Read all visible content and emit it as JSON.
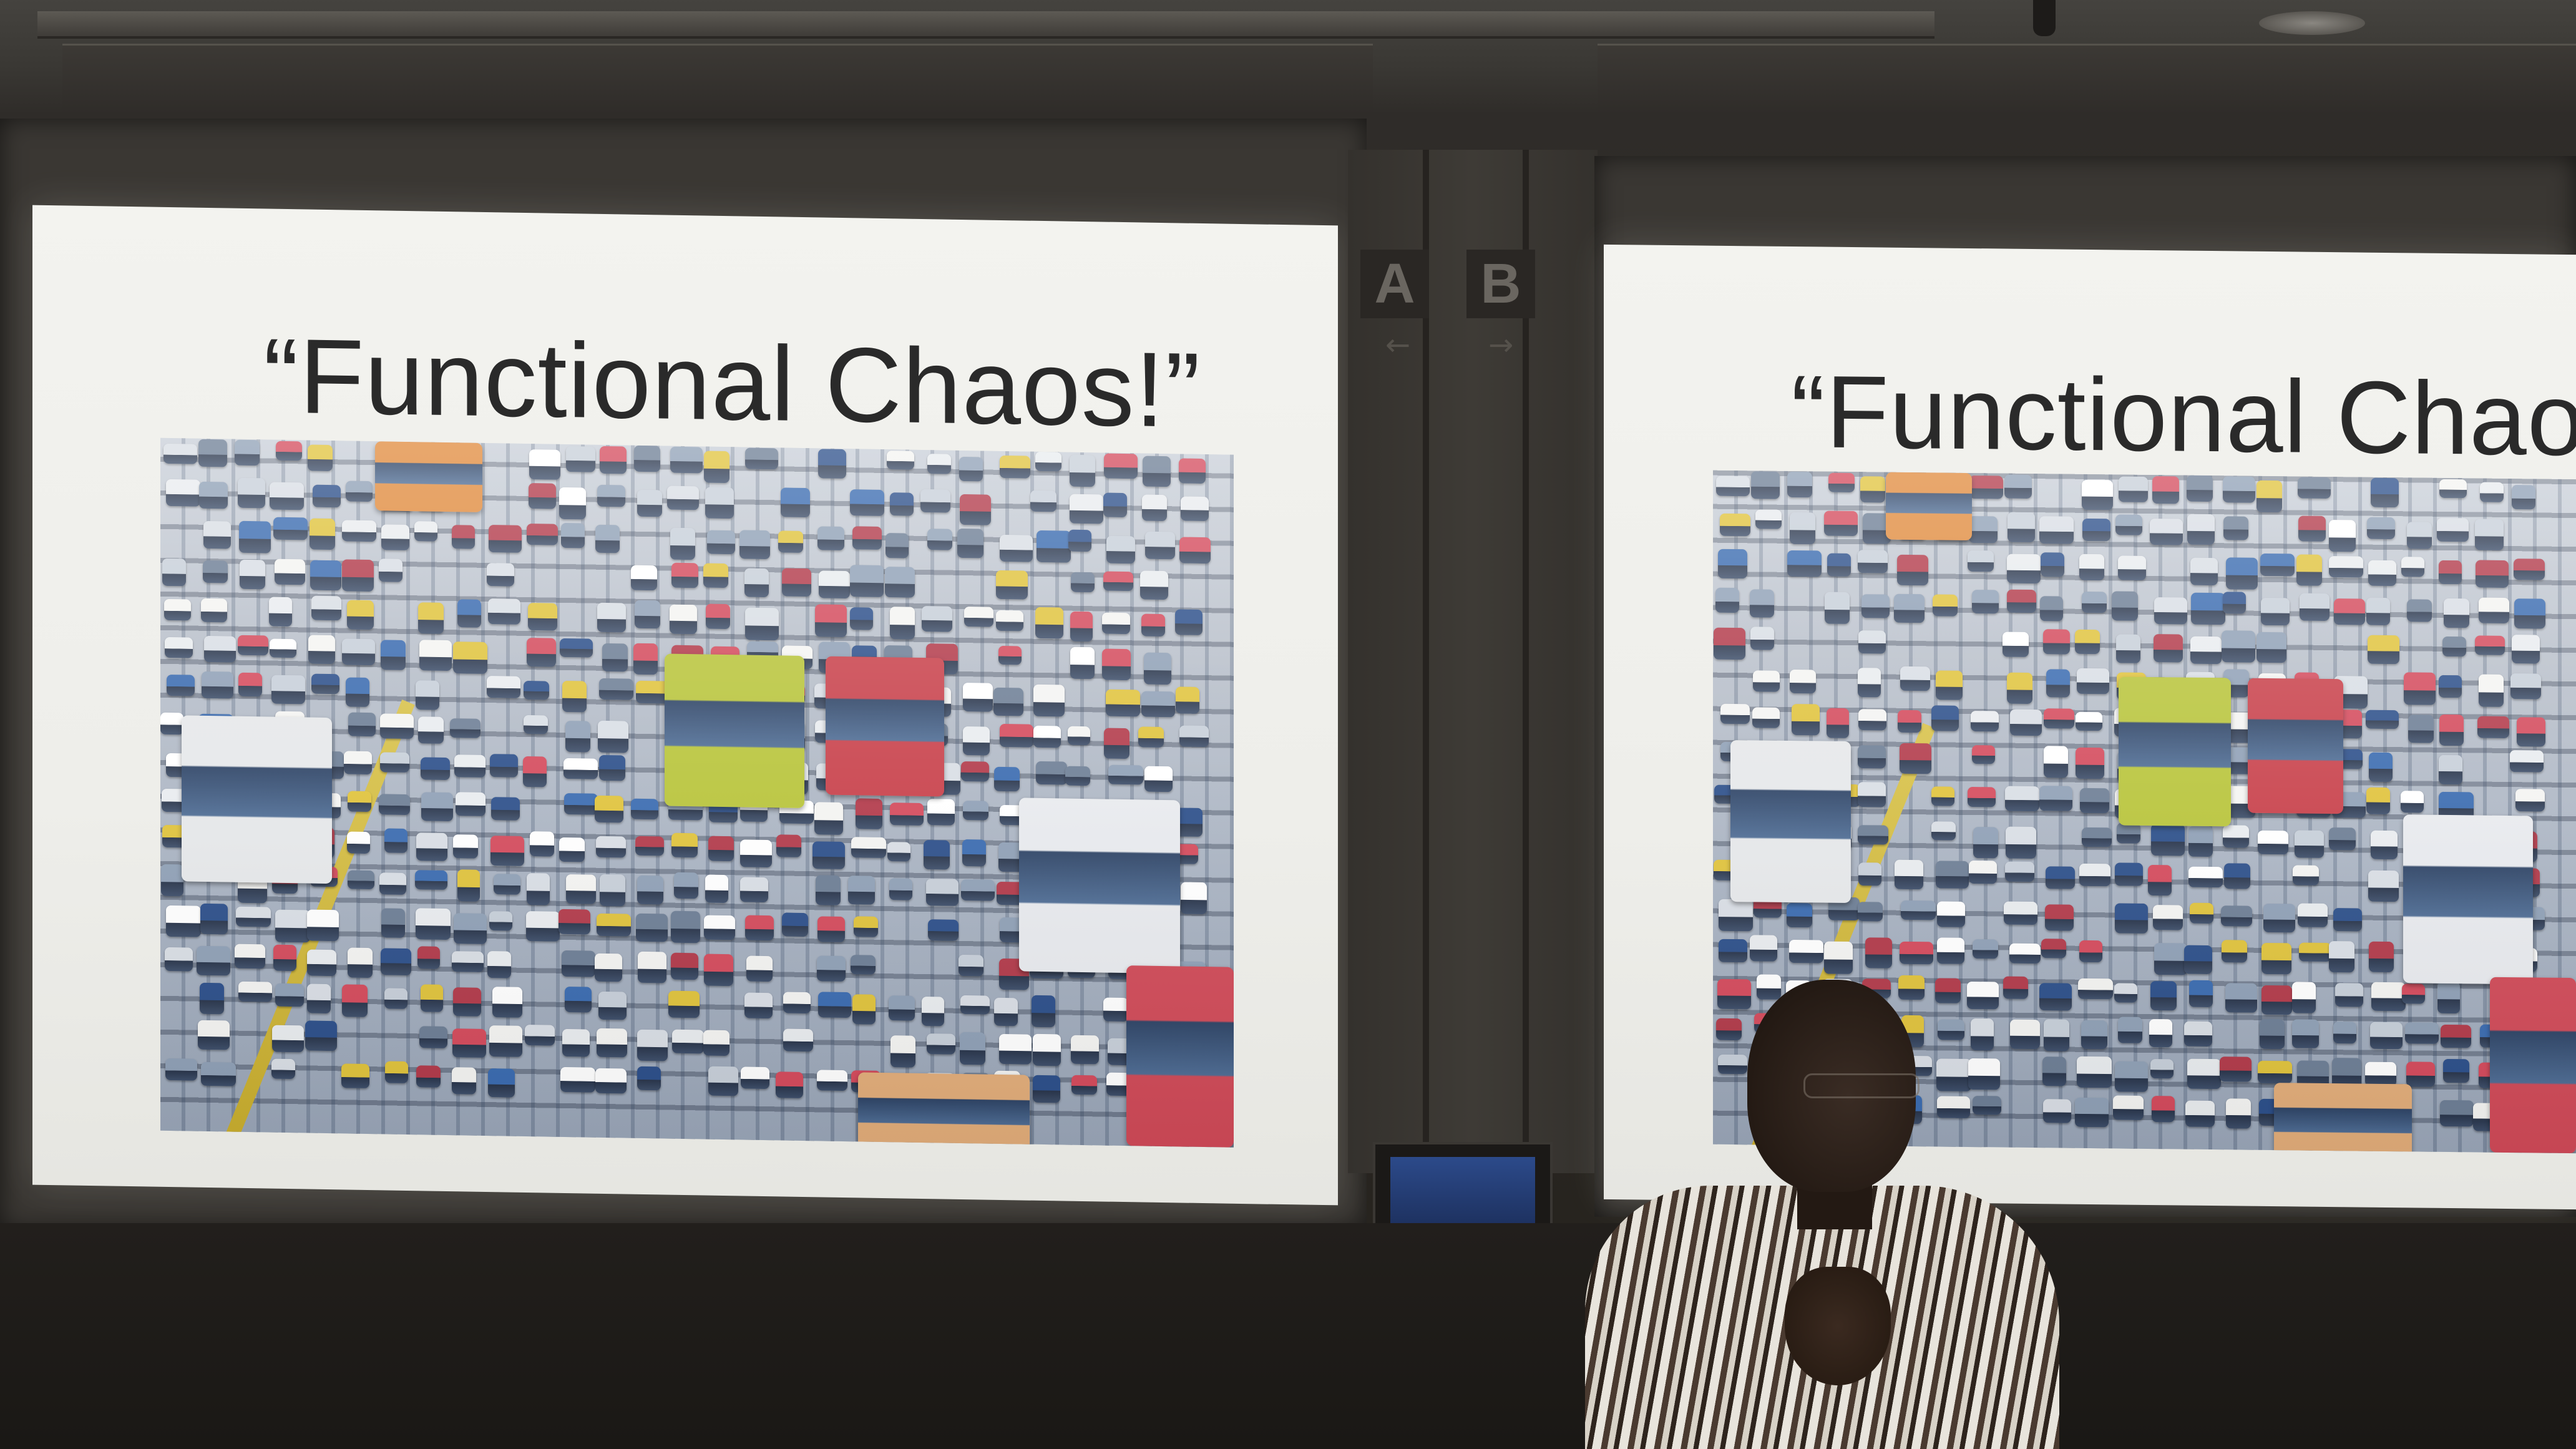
{
  "slides": {
    "left_title": "“Functional Chaos!”",
    "right_title": "“Functional Chaos!"
  },
  "divider_labels": {
    "a": "A",
    "b": "B",
    "arrow_a": "←",
    "arrow_b": "→"
  },
  "photo": {
    "subject": "traffic-jam-icon"
  },
  "colors": {
    "screen": "#f0f0ec",
    "title_text": "#2a2a2a",
    "bus_yellow_green": "#b8c43a",
    "bus_red": "#c8404a",
    "median_yellow": "#d8c24a"
  }
}
